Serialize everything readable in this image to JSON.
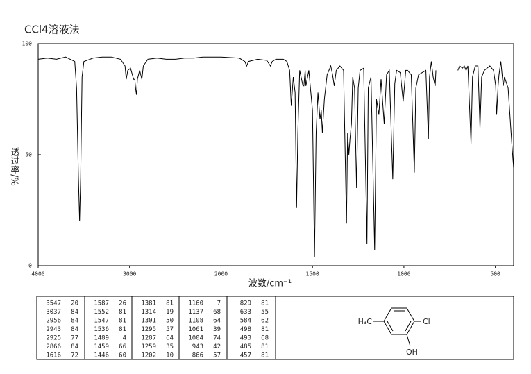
{
  "chart_data": {
    "type": "line",
    "title": "CCl4溶液法",
    "x_label": "波数/cm⁻¹",
    "y_label": "透过率/%",
    "x": [
      4000,
      3900,
      3800,
      3700,
      3650,
      3600,
      3580,
      3560,
      3547,
      3535,
      3520,
      3500,
      3400,
      3300,
      3200,
      3100,
      3050,
      3037,
      3020,
      2990,
      2970,
      2956,
      2943,
      2935,
      2925,
      2915,
      2890,
      2866,
      2850,
      2800,
      2700,
      2600,
      2500,
      2400,
      2300,
      2200,
      2100,
      2000,
      1900,
      1870,
      1860,
      1850,
      1800,
      1750,
      1730,
      1720,
      1700,
      1660,
      1640,
      1625,
      1616,
      1605,
      1595,
      1587,
      1580,
      1570,
      1552,
      1547,
      1540,
      1536,
      1520,
      1500,
      1489,
      1480,
      1470,
      1459,
      1452,
      1446,
      1435,
      1420,
      1400,
      1390,
      1381,
      1370,
      1350,
      1330,
      1314,
      1308,
      1301,
      1295,
      1287,
      1280,
      1270,
      1259,
      1250,
      1240,
      1220,
      1202,
      1195,
      1180,
      1160,
      1150,
      1137,
      1125,
      1108,
      1095,
      1080,
      1061,
      1050,
      1040,
      1020,
      1004,
      990,
      980,
      960,
      943,
      935,
      920,
      900,
      880,
      866,
      860,
      850,
      840,
      829,
      825,
      760,
      705,
      695,
      680,
      670,
      660,
      650,
      633,
      625,
      610,
      595,
      584,
      575,
      560,
      530,
      510,
      498,
      493,
      485,
      480,
      470,
      457,
      450,
      430,
      410,
      400
    ],
    "series": [
      {
        "name": "spectrum",
        "color": "#000000",
        "values": [
          93,
          93.5,
          93,
          94,
          93,
          92,
          80,
          40,
          20,
          40,
          85,
          92,
          93.5,
          94,
          94,
          93,
          90,
          84,
          88,
          89,
          86,
          84,
          84,
          80,
          77,
          84,
          88,
          84,
          90,
          93,
          93.5,
          93,
          93,
          93.5,
          93.5,
          94,
          94,
          94,
          93.5,
          92,
          90,
          92,
          93,
          92.5,
          90,
          92,
          93,
          93,
          92,
          88,
          72,
          85,
          78,
          26,
          60,
          88,
          81,
          81,
          88,
          81,
          88,
          70,
          4,
          60,
          78,
          66,
          70,
          60,
          75,
          86,
          90,
          86,
          81,
          88,
          90,
          88,
          19,
          60,
          50,
          57,
          64,
          85,
          80,
          35,
          80,
          88,
          89,
          10,
          80,
          85,
          7,
          75,
          68,
          84,
          64,
          86,
          88,
          39,
          82,
          88,
          87,
          74,
          88,
          88,
          86,
          42,
          80,
          86,
          87,
          88,
          57,
          85,
          92,
          85,
          81,
          88,
          null,
          88,
          90,
          89,
          90,
          88,
          90,
          55,
          85,
          90,
          90,
          62,
          85,
          88,
          90,
          88,
          81,
          68,
          81,
          86,
          92,
          81,
          85,
          80,
          55,
          44
        ]
      }
    ],
    "xlim": [
      4000,
      400
    ],
    "xticks": [
      4000,
      3000,
      2000,
      1500,
      1000,
      500
    ],
    "x_scale_break": 2000,
    "ylim": [
      0,
      100
    ],
    "yticks": [
      0,
      50,
      100
    ],
    "grid": false
  },
  "peak_table": {
    "columns": [
      [
        [
          3547,
          20
        ],
        [
          3037,
          84
        ],
        [
          2956,
          84
        ],
        [
          2943,
          84
        ],
        [
          2925,
          77
        ],
        [
          2866,
          84
        ],
        [
          1616,
          72
        ]
      ],
      [
        [
          1587,
          26
        ],
        [
          1552,
          81
        ],
        [
          1547,
          81
        ],
        [
          1536,
          81
        ],
        [
          1489,
          4
        ],
        [
          1459,
          66
        ],
        [
          1446,
          60
        ]
      ],
      [
        [
          1381,
          81
        ],
        [
          1314,
          19
        ],
        [
          1301,
          50
        ],
        [
          1295,
          57
        ],
        [
          1287,
          64
        ],
        [
          1259,
          35
        ],
        [
          1202,
          10
        ]
      ],
      [
        [
          1160,
          7
        ],
        [
          1137,
          68
        ],
        [
          1108,
          64
        ],
        [
          1061,
          39
        ],
        [
          1004,
          74
        ],
        [
          943,
          42
        ],
        [
          866,
          57
        ]
      ],
      [
        [
          829,
          81
        ],
        [
          633,
          55
        ],
        [
          584,
          62
        ],
        [
          498,
          81
        ],
        [
          493,
          68
        ],
        [
          485,
          81
        ],
        [
          457,
          81
        ]
      ]
    ]
  },
  "structure": {
    "left": "H₃C",
    "right": "Cl",
    "bottom": "OH"
  }
}
